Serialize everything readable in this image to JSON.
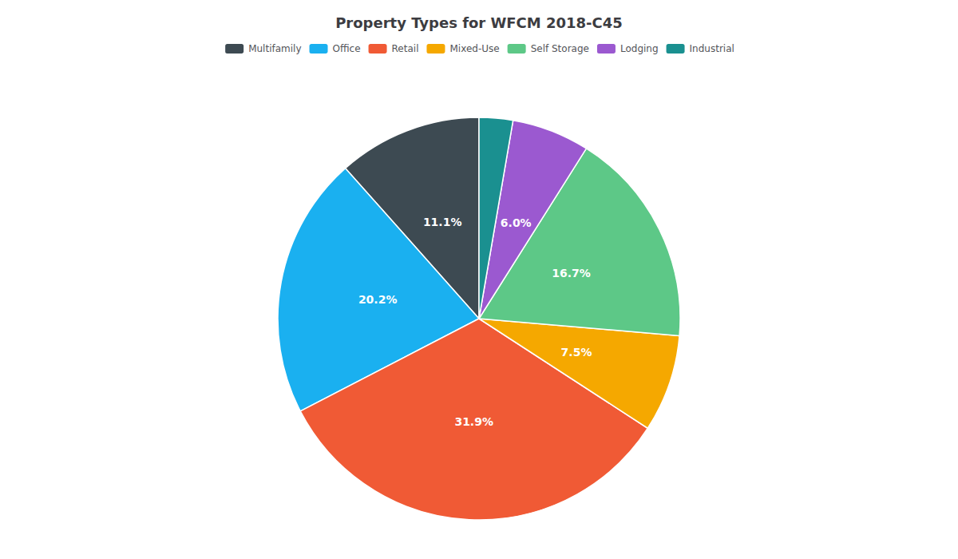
{
  "chart_data": {
    "type": "pie",
    "title": "Property Types for WFCM 2018-C45",
    "categories": [
      "Multifamily",
      "Office",
      "Retail",
      "Mixed-Use",
      "Self Storage",
      "Lodging",
      "Industrial"
    ],
    "values": [
      11.1,
      20.2,
      31.9,
      7.5,
      16.7,
      6.0,
      2.6
    ],
    "value_labels": [
      "11.1%",
      "20.2%",
      "31.9%",
      "7.5%",
      "16.7%",
      "6.0%",
      null
    ],
    "colors": [
      "#3d4a52",
      "#1ab0f0",
      "#f05a35",
      "#f5a800",
      "#5dc887",
      "#9b59d0",
      "#1a9090"
    ],
    "data_labels": true,
    "legend": "top"
  }
}
